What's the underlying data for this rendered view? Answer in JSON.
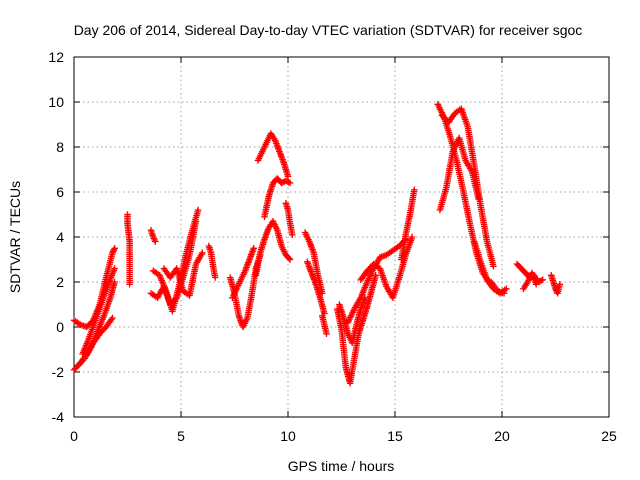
{
  "chart_data": {
    "type": "scatter",
    "title": "Day 206 of 2014, Sidereal Day-to-day VTEC variation (SDTVAR) for receiver sgoc",
    "xlabel": "GPS time / hours",
    "ylabel": "SDTVAR / TECUs",
    "xlim": [
      0,
      25
    ],
    "ylim": [
      -4,
      12
    ],
    "xticks": [
      0,
      5,
      10,
      15,
      20,
      25
    ],
    "xtick_labels": [
      "0",
      "5",
      "10",
      "15",
      "20",
      "25"
    ],
    "yticks": [
      -4,
      -2,
      0,
      2,
      4,
      6,
      8,
      10,
      12
    ],
    "ytick_labels": [
      "-4",
      "-2",
      "0",
      "2",
      "4",
      "6",
      "8",
      "10",
      "12"
    ],
    "grid": true,
    "marker": "+",
    "series": [
      {
        "name": "SDTVAR",
        "color": "#ff0000",
        "segments": [
          {
            "x": [
              0.0,
              0.3,
              0.6,
              0.9,
              1.2,
              1.5,
              1.8,
              1.9
            ],
            "y": [
              0.3,
              0.1,
              0.0,
              0.3,
              1.0,
              2.2,
              3.3,
              3.5
            ]
          },
          {
            "x": [
              0.0,
              0.3,
              0.6,
              0.9,
              1.2,
              1.5,
              1.8
            ],
            "y": [
              -1.9,
              -1.6,
              -1.2,
              -0.7,
              -0.3,
              0.0,
              0.4
            ]
          },
          {
            "x": [
              0.2,
              0.5,
              0.8,
              1.1,
              1.4,
              1.7,
              1.9
            ],
            "y": [
              -1.7,
              -1.4,
              -0.9,
              -0.2,
              0.5,
              1.3,
              2.0
            ]
          },
          {
            "x": [
              0.4,
              0.7,
              1.0,
              1.3,
              1.6,
              1.9
            ],
            "y": [
              -1.2,
              -0.5,
              0.3,
              1.1,
              1.9,
              2.6
            ]
          },
          {
            "x": [
              2.5,
              2.5,
              2.6,
              2.6,
              2.6
            ],
            "y": [
              5.0,
              4.6,
              3.8,
              3.3,
              1.9
            ]
          },
          {
            "x": [
              3.6,
              3.7,
              3.8
            ],
            "y": [
              4.3,
              4.0,
              3.8
            ]
          },
          {
            "x": [
              3.6,
              3.9,
              4.2,
              4.5,
              4.8,
              5.1,
              5.4,
              5.7
            ],
            "y": [
              1.5,
              1.3,
              1.8,
              1.0,
              1.3,
              2.2,
              3.2,
              4.7
            ]
          },
          {
            "x": [
              3.7,
              4.0,
              4.3,
              4.6,
              4.9,
              5.2,
              5.5,
              5.8
            ],
            "y": [
              2.5,
              2.3,
              1.6,
              0.7,
              1.8,
              3.1,
              4.2,
              5.2
            ]
          },
          {
            "x": [
              4.2,
              4.5,
              4.8,
              5.1,
              5.4,
              5.7,
              6.0
            ],
            "y": [
              2.6,
              2.2,
              2.6,
              1.6,
              1.4,
              2.8,
              3.3
            ]
          },
          {
            "x": [
              6.3,
              6.4,
              6.5,
              6.6
            ],
            "y": [
              3.6,
              3.3,
              2.7,
              2.2
            ]
          },
          {
            "x": [
              7.3,
              7.5,
              7.7,
              7.9,
              8.1,
              8.3,
              8.5,
              8.7
            ],
            "y": [
              2.2,
              1.5,
              0.5,
              0.0,
              0.4,
              1.4,
              2.6,
              3.2
            ]
          },
          {
            "x": [
              7.4,
              7.6,
              7.8,
              8.0,
              8.2,
              8.4
            ],
            "y": [
              1.3,
              1.7,
              2.1,
              2.5,
              3.0,
              3.5
            ]
          },
          {
            "x": [
              8.5,
              8.7,
              8.9,
              9.1,
              9.3,
              9.5,
              9.7,
              9.9,
              10.1
            ],
            "y": [
              2.3,
              3.3,
              3.9,
              4.4,
              4.7,
              4.3,
              3.6,
              3.2,
              3.0
            ]
          },
          {
            "x": [
              8.6,
              8.8,
              9.0,
              9.2,
              9.4,
              9.6,
              9.8,
              10.0
            ],
            "y": [
              7.4,
              7.8,
              8.2,
              8.6,
              8.3,
              7.8,
              7.3,
              6.7
            ]
          },
          {
            "x": [
              8.9,
              9.1,
              9.3,
              9.5,
              9.7,
              9.9,
              10.1
            ],
            "y": [
              4.9,
              5.8,
              6.4,
              6.6,
              6.4,
              6.5,
              6.4
            ]
          },
          {
            "x": [
              9.9,
              10.0,
              10.1,
              10.2
            ],
            "y": [
              5.5,
              5.2,
              4.6,
              4.1
            ]
          },
          {
            "x": [
              10.8,
              11.0,
              11.2,
              11.4,
              11.6
            ],
            "y": [
              4.2,
              3.8,
              3.3,
              2.3,
              1.5
            ]
          },
          {
            "x": [
              10.9,
              11.1,
              11.3,
              11.5,
              11.7
            ],
            "y": [
              2.9,
              2.4,
              1.9,
              1.3,
              0.6
            ]
          },
          {
            "x": [
              11.6,
              11.7,
              11.8
            ],
            "y": [
              0.5,
              0.1,
              -0.3
            ]
          },
          {
            "x": [
              12.3,
              12.5,
              12.7,
              12.9,
              13.1,
              13.3,
              13.5,
              13.7,
              13.9,
              14.1
            ],
            "y": [
              0.8,
              -0.1,
              -1.8,
              -2.5,
              -1.4,
              -0.3,
              0.3,
              0.9,
              1.6,
              2.3
            ]
          },
          {
            "x": [
              12.4,
              12.6,
              12.8,
              13.0,
              13.2,
              13.4,
              13.6
            ],
            "y": [
              1.0,
              0.4,
              -0.3,
              -0.7,
              0.1,
              0.8,
              1.3
            ]
          },
          {
            "x": [
              12.8,
              13.1,
              13.4,
              13.7,
              14.0,
              14.3,
              14.6,
              14.9,
              15.2,
              15.5
            ],
            "y": [
              0.2,
              0.8,
              1.3,
              2.0,
              2.6,
              3.1,
              3.2,
              3.4,
              3.6,
              3.9
            ]
          },
          {
            "x": [
              13.4,
              13.7,
              14.0,
              14.3,
              14.6,
              14.9,
              15.2,
              15.5,
              15.8
            ],
            "y": [
              2.1,
              2.5,
              2.8,
              2.6,
              1.8,
              1.3,
              2.2,
              3.2,
              4.0
            ]
          },
          {
            "x": [
              15.3,
              15.5,
              15.7,
              15.9
            ],
            "y": [
              3.0,
              4.1,
              5.0,
              6.1
            ]
          },
          {
            "x": [
              17.0,
              17.3,
              17.6,
              17.9,
              18.2,
              18.5,
              18.8,
              19.1,
              19.4
            ],
            "y": [
              9.9,
              9.3,
              8.4,
              7.3,
              6.0,
              4.6,
              3.3,
              2.4,
              2.0
            ]
          },
          {
            "x": [
              17.2,
              17.5,
              17.8,
              18.1,
              18.4,
              18.7,
              19.0,
              19.3,
              19.6
            ],
            "y": [
              9.4,
              9.1,
              9.5,
              9.7,
              8.9,
              7.2,
              5.4,
              3.8,
              2.7
            ]
          },
          {
            "x": [
              17.1,
              17.4,
              17.7,
              18.0,
              18.3,
              18.6,
              18.9
            ],
            "y": [
              5.2,
              6.2,
              7.8,
              8.4,
              7.4,
              6.9,
              5.7
            ]
          },
          {
            "x": [
              18.7,
              19.0,
              19.3,
              19.6,
              19.9,
              20.2
            ],
            "y": [
              3.8,
              2.9,
              2.1,
              1.7,
              1.5,
              1.7
            ]
          },
          {
            "x": [
              19.5,
              19.8,
              20.1
            ],
            "y": [
              2.0,
              1.6,
              1.5
            ]
          },
          {
            "x": [
              20.7,
              20.9,
              21.1,
              21.3,
              21.5,
              21.7,
              21.9
            ],
            "y": [
              2.8,
              2.6,
              2.4,
              2.2,
              2.3,
              2.0,
              2.1
            ]
          },
          {
            "x": [
              21.0,
              21.2,
              21.4,
              21.6
            ],
            "y": [
              1.7,
              2.0,
              2.4,
              1.9
            ]
          },
          {
            "x": [
              22.3,
              22.4,
              22.5,
              22.6,
              22.7
            ],
            "y": [
              2.3,
              2.0,
              1.7,
              1.5,
              1.9
            ]
          }
        ]
      }
    ]
  }
}
